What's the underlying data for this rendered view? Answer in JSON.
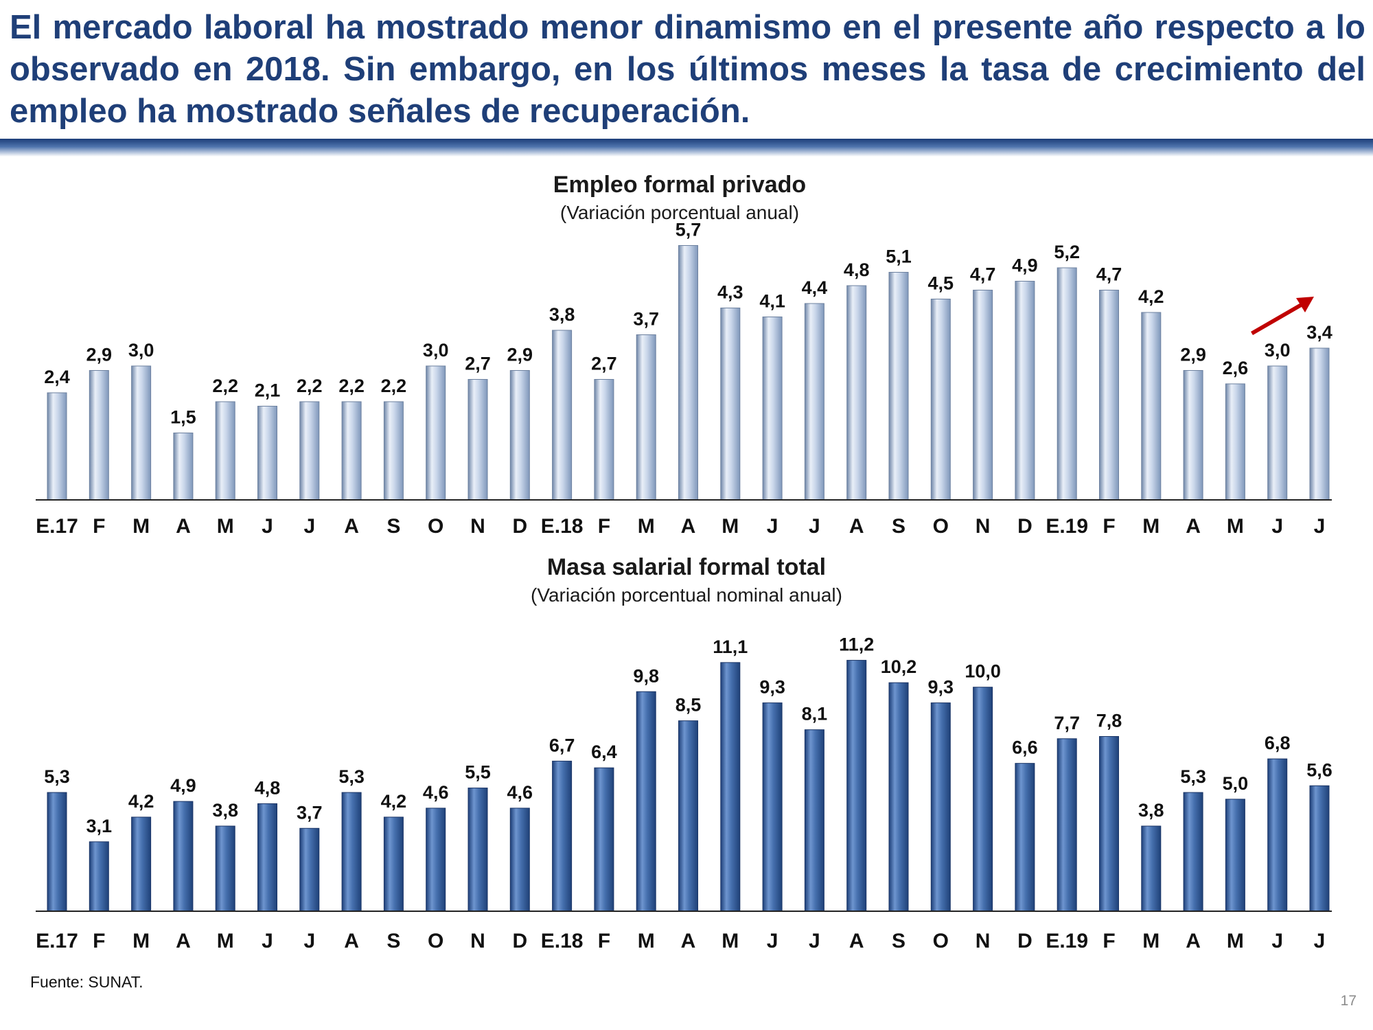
{
  "headline": "El mercado laboral ha mostrado menor dinamismo en el presente año respecto a lo observado en 2018. Sin embargo, en los últimos meses la tasa de crecimiento del empleo ha mostrado señales de recuperación.",
  "colors": {
    "headline": "#1f3f78",
    "rule": "#2a4f8c",
    "bar_light": "#b4c7e2",
    "bar_dark": "#4a74b4",
    "arrow": "#c00000"
  },
  "chart_data": [
    {
      "type": "bar",
      "title": "Empleo formal privado",
      "subtitle": "(Variación porcentual anual)",
      "categories": [
        "E.17",
        "F",
        "M",
        "A",
        "M",
        "J",
        "J",
        "A",
        "S",
        "O",
        "N",
        "D",
        "E.18",
        "F",
        "M",
        "A",
        "M",
        "J",
        "J",
        "A",
        "S",
        "O",
        "N",
        "D",
        "E.19",
        "F",
        "M",
        "A",
        "M",
        "J",
        "J"
      ],
      "values": [
        2.4,
        2.9,
        3.0,
        1.5,
        2.2,
        2.1,
        2.2,
        2.2,
        2.2,
        3.0,
        2.7,
        2.9,
        3.8,
        2.7,
        3.7,
        5.7,
        4.3,
        4.1,
        4.4,
        4.8,
        5.1,
        4.5,
        4.7,
        4.9,
        5.2,
        4.7,
        4.2,
        2.9,
        2.6,
        3.0,
        3.4
      ],
      "value_labels": [
        "2,4",
        "2,9",
        "3,0",
        "1,5",
        "2,2",
        "2,1",
        "2,2",
        "2,2",
        "2,2",
        "3,0",
        "2,7",
        "2,9",
        "3,8",
        "2,7",
        "3,7",
        "5,7",
        "4,3",
        "4,1",
        "4,4",
        "4,8",
        "5,1",
        "4,5",
        "4,7",
        "4,9",
        "5,2",
        "4,7",
        "4,2",
        "2,9",
        "2,6",
        "3,0",
        "3,4"
      ],
      "ylim": [
        0,
        6
      ],
      "grid": false,
      "annotation": "up-arrow-icon"
    },
    {
      "type": "bar",
      "title": "Masa salarial formal total",
      "subtitle": "(Variación porcentual nominal anual)",
      "categories": [
        "E.17",
        "F",
        "M",
        "A",
        "M",
        "J",
        "J",
        "A",
        "S",
        "O",
        "N",
        "D",
        "E.18",
        "F",
        "M",
        "A",
        "M",
        "J",
        "J",
        "A",
        "S",
        "O",
        "N",
        "D",
        "E.19",
        "F",
        "M",
        "A",
        "M",
        "J",
        "J"
      ],
      "values": [
        5.3,
        3.1,
        4.2,
        4.9,
        3.8,
        4.8,
        3.7,
        5.3,
        4.2,
        4.6,
        5.5,
        4.6,
        6.7,
        6.4,
        9.8,
        8.5,
        11.1,
        9.3,
        8.1,
        11.2,
        10.2,
        9.3,
        10.0,
        6.6,
        7.7,
        7.8,
        3.8,
        5.3,
        5.0,
        6.8,
        5.6
      ],
      "value_labels": [
        "5,3",
        "3,1",
        "4,2",
        "4,9",
        "3,8",
        "4,8",
        "3,7",
        "5,3",
        "4,2",
        "4,6",
        "5,5",
        "4,6",
        "6,7",
        "6,4",
        "9,8",
        "8,5",
        "11,1",
        "9,3",
        "8,1",
        "11,2",
        "10,2",
        "9,3",
        "10,0",
        "6,6",
        "7,7",
        "7,8",
        "3,8",
        "5,3",
        "5,0",
        "6,8",
        "5,6"
      ],
      "ylim": [
        0,
        11.8
      ],
      "grid": false
    }
  ],
  "footer": {
    "source": "Fuente: SUNAT.",
    "page_number": "17"
  }
}
